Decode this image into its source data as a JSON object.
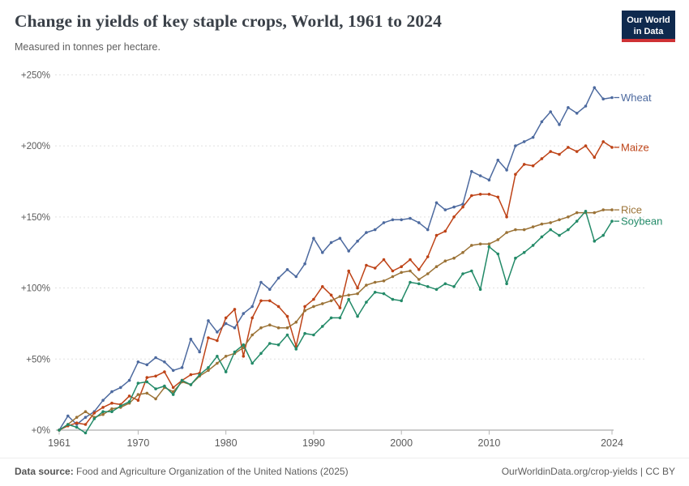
{
  "header": {
    "title": "Change in yields of key staple crops, World, 1961 to 2024",
    "subtitle": "Measured in tonnes per hectare.",
    "logo": {
      "line1": "Our World",
      "line2": "in Data",
      "bg_color": "#0f2a4e",
      "bar_color": "#cf3235"
    }
  },
  "footer": {
    "source_label": "Data source:",
    "source_text": " Food and Agriculture Organization of the United Nations (2025)",
    "credit": "OurWorldinData.org/crop-yields | CC BY"
  },
  "chart_data": {
    "type": "line",
    "title": "Change in yields of key staple crops, World, 1961 to 2024",
    "unit": "percent change since 1961",
    "xlim": [
      1961,
      2024
    ],
    "ylim": [
      0,
      250
    ],
    "x_ticks": [
      1961,
      1970,
      1980,
      1990,
      2000,
      2010,
      2024
    ],
    "y_ticks": [
      0,
      50,
      100,
      150,
      200,
      250
    ],
    "y_tick_prefix": "+",
    "y_tick_suffix": "%",
    "grid": "horizontal-dashed",
    "legend_position": "right-of-line-ends",
    "axis_color": "#9a9a9a",
    "grid_color": "#e0e0e0",
    "tick_label_color": "#5b5b5b",
    "x": [
      1961,
      1962,
      1963,
      1964,
      1965,
      1966,
      1967,
      1968,
      1969,
      1970,
      1971,
      1972,
      1973,
      1974,
      1975,
      1976,
      1977,
      1978,
      1979,
      1980,
      1981,
      1982,
      1983,
      1984,
      1985,
      1986,
      1987,
      1988,
      1989,
      1990,
      1991,
      1992,
      1993,
      1994,
      1995,
      1996,
      1997,
      1998,
      1999,
      2000,
      2001,
      2002,
      2003,
      2004,
      2005,
      2006,
      2007,
      2008,
      2009,
      2010,
      2011,
      2012,
      2013,
      2014,
      2015,
      2016,
      2017,
      2018,
      2019,
      2020,
      2021,
      2022,
      2023,
      2024
    ],
    "series": [
      {
        "name": "Wheat",
        "color": "#4d6a9f",
        "values": [
          0,
          10,
          4,
          9,
          13,
          21,
          27,
          30,
          35,
          48,
          46,
          51,
          48,
          42,
          44,
          64,
          55,
          77,
          69,
          75,
          72,
          82,
          87,
          104,
          99,
          107,
          113,
          108,
          117,
          135,
          125,
          132,
          135,
          126,
          133,
          139,
          141,
          146,
          148,
          148,
          149,
          146,
          141,
          160,
          155,
          157,
          159,
          182,
          179,
          176,
          190,
          183,
          200,
          203,
          206,
          217,
          224,
          215,
          227,
          223,
          228,
          241,
          233,
          234
        ]
      },
      {
        "name": "Maize",
        "color": "#be4317",
        "values": [
          0,
          3,
          5,
          4,
          12,
          16,
          19,
          18,
          24,
          21,
          37,
          38,
          41,
          30,
          35,
          39,
          40,
          65,
          63,
          79,
          85,
          52,
          79,
          91,
          91,
          87,
          80,
          59,
          87,
          92,
          101,
          95,
          86,
          112,
          100,
          116,
          114,
          120,
          112,
          115,
          120,
          113,
          122,
          137,
          140,
          150,
          157,
          165,
          166,
          166,
          164,
          150,
          180,
          187,
          186,
          191,
          196,
          194,
          199,
          196,
          200,
          192,
          203,
          199
        ]
      },
      {
        "name": "Rice",
        "color": "#9b7337",
        "values": [
          0,
          4,
          9,
          13,
          9,
          11,
          15,
          16,
          19,
          25,
          26,
          22,
          30,
          27,
          34,
          32,
          38,
          42,
          47,
          52,
          54,
          58,
          67,
          72,
          74,
          72,
          72,
          76,
          84,
          87,
          89,
          91,
          94,
          95,
          96,
          102,
          104,
          105,
          108,
          111,
          112,
          106,
          110,
          115,
          119,
          121,
          125,
          130,
          131,
          131,
          134,
          139,
          141,
          141,
          143,
          145,
          146,
          148,
          150,
          153,
          153,
          153,
          155,
          155
        ]
      },
      {
        "name": "Soybean",
        "color": "#238a68",
        "values": [
          0,
          4,
          2,
          -2,
          8,
          13,
          13,
          17,
          20,
          33,
          34,
          29,
          31,
          25,
          35,
          32,
          39,
          44,
          52,
          41,
          55,
          60,
          47,
          54,
          61,
          60,
          67,
          57,
          68,
          67,
          73,
          79,
          79,
          92,
          80,
          90,
          97,
          96,
          92,
          91,
          104,
          103,
          101,
          99,
          103,
          101,
          110,
          112,
          99,
          129,
          124,
          103,
          121,
          125,
          130,
          136,
          141,
          137,
          141,
          147,
          154,
          133,
          137,
          147
        ]
      }
    ]
  }
}
